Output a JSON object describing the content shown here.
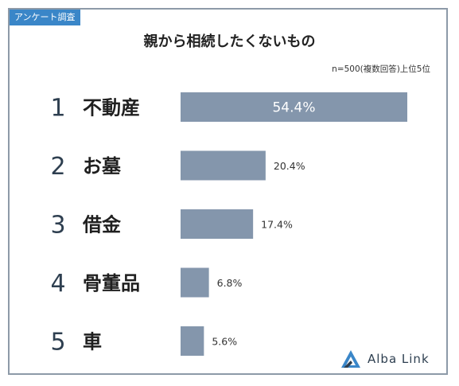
{
  "badge": "アンケート調査",
  "chart_data": {
    "type": "bar",
    "orientation": "horizontal",
    "title": "親から相続したくないもの",
    "subtitle": "n=500(複数回答)上位5位",
    "ranks": [
      "1",
      "2",
      "3",
      "4",
      "5"
    ],
    "categories": [
      "不動産",
      "お墓",
      "借金",
      "骨董品",
      "車"
    ],
    "values": [
      54.4,
      20.4,
      17.4,
      6.8,
      5.6
    ],
    "value_labels": [
      "54.4%",
      "20.4%",
      "17.4%",
      "6.8%",
      "5.6%"
    ],
    "unit": "%",
    "bar_color": "#8496ac",
    "grid": false,
    "legend": "none"
  },
  "brand": {
    "name": "Alba Link",
    "logo_icon": "alba-link-logo-icon",
    "color": "#2e3f50"
  }
}
